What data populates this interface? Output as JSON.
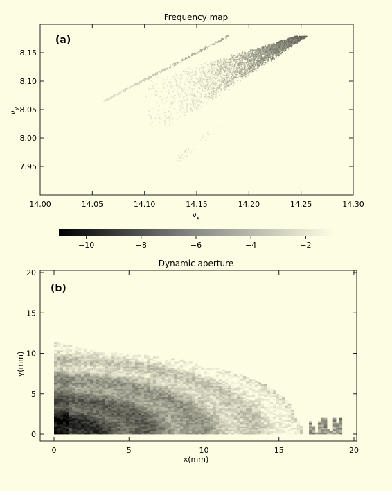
{
  "chart_data": [
    {
      "type": "scatter",
      "panel_label": "(a)",
      "title": "Frequency map",
      "xlabel": "ν",
      "xlabel_sub": "x",
      "ylabel": "ν",
      "ylabel_sub": "y",
      "xlim": [
        14.0,
        14.3
      ],
      "ylim": [
        7.9,
        8.2
      ],
      "xticks": [
        14.0,
        14.05,
        14.1,
        14.15,
        14.2,
        14.25,
        14.3
      ],
      "xtick_labels": [
        "14.00",
        "14.05",
        "14.10",
        "14.15",
        "14.20",
        "14.25",
        "14.30"
      ],
      "yticks": [
        7.95,
        8.0,
        8.05,
        8.1,
        8.15
      ],
      "ytick_labels": [
        "7.95",
        "8.00",
        "8.05",
        "8.10",
        "8.15"
      ],
      "regions": [
        {
          "shape": "main-wedge",
          "x_range": [
            14.1,
            14.25
          ],
          "y_range": [
            8.02,
            8.18
          ],
          "apex": [
            14.25,
            8.18
          ],
          "diffusion_range": [
            -8,
            -2
          ]
        },
        {
          "shape": "narrow-line",
          "from": [
            14.06,
            8.065
          ],
          "to": [
            14.18,
            8.18
          ],
          "diffusion_range": [
            -5,
            -2
          ]
        },
        {
          "shape": "sparse-tail",
          "from": [
            14.13,
            7.96
          ],
          "to": [
            14.17,
            8.02
          ],
          "diffusion_range": [
            -3,
            -1.5
          ]
        }
      ]
    },
    {
      "type": "colorbar",
      "ticks": [
        -10,
        -8,
        -6,
        -4,
        -2
      ],
      "tick_labels": [
        "−10",
        "−8",
        "−6",
        "−4",
        "−2"
      ],
      "range": [
        -11,
        -1
      ],
      "colors": {
        "low": "#000000",
        "high": "#fdfde3"
      }
    },
    {
      "type": "heatmap",
      "panel_label": "(b)",
      "title": "Dynamic aperture",
      "xlabel": "x(mm)",
      "ylabel": "y(mm)",
      "xlim": [
        0,
        20
      ],
      "ylim": [
        0,
        20
      ],
      "xticks": [
        0,
        5,
        10,
        15,
        20
      ],
      "yticks": [
        0,
        5,
        10,
        15,
        20
      ],
      "aperture_boundary": [
        [
          0,
          11.3
        ],
        [
          2,
          10.4
        ],
        [
          5,
          9.8
        ],
        [
          8,
          9.2
        ],
        [
          10,
          8.5
        ],
        [
          12,
          7.5
        ],
        [
          14,
          6.0
        ],
        [
          15.5,
          4.0
        ],
        [
          16,
          2.0
        ],
        [
          16.5,
          0.5
        ]
      ],
      "islands": [
        {
          "x_range": [
            17,
            19
          ],
          "y_range": [
            0,
            2
          ]
        }
      ],
      "diffusion_range": [
        -10,
        -1.5
      ]
    }
  ]
}
